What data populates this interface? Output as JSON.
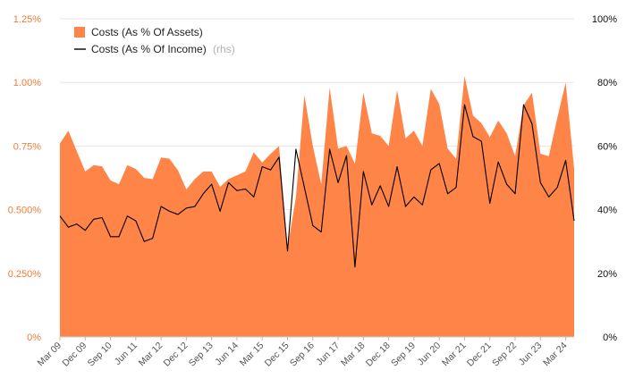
{
  "chart_data": {
    "type": "area",
    "x_ticks": [
      "Mar 09",
      "Dec 09",
      "Sep 10",
      "Jun 11",
      "Mar 12",
      "Dec 12",
      "Sep 13",
      "Jun 14",
      "Mar 15",
      "Dec 15",
      "Sep 16",
      "Jun 17",
      "Mar 18",
      "Dec 18",
      "Sep 19",
      "Jun 20",
      "Mar 21",
      "Dec 21",
      "Sep 22",
      "Jun 23",
      "Mar 24"
    ],
    "left_axis": {
      "ticks": [
        "0%",
        "0.250%",
        "0.500%",
        "0.75%",
        "1.00%",
        "1.25%"
      ],
      "tick_values": [
        0,
        0.25,
        0.5,
        0.75,
        1.0,
        1.25
      ],
      "range": [
        0,
        1.25
      ],
      "color": "#f47a33"
    },
    "right_axis": {
      "ticks": [
        "0%",
        "20%",
        "40%",
        "60%",
        "80%",
        "100%"
      ],
      "tick_values": [
        0,
        20,
        40,
        60,
        80,
        100
      ],
      "range": [
        0,
        100
      ],
      "color": "#111111"
    },
    "legend": {
      "placement": "top-left",
      "rhs_suffix": "(rhs)"
    },
    "series": [
      {
        "name": "Costs (As % Of Assets)",
        "type": "area",
        "axis": "left",
        "color": "#ff8447",
        "values": [
          0.76,
          0.81,
          0.73,
          0.65,
          0.675,
          0.67,
          0.615,
          0.6,
          0.675,
          0.66,
          0.625,
          0.62,
          0.705,
          0.7,
          0.655,
          0.58,
          0.62,
          0.65,
          0.65,
          0.59,
          0.62,
          0.635,
          0.65,
          0.725,
          0.685,
          0.72,
          0.75,
          0.35,
          0.55,
          0.95,
          0.75,
          0.6,
          0.98,
          0.74,
          0.75,
          0.68,
          0.96,
          0.8,
          0.79,
          0.75,
          0.97,
          0.78,
          0.81,
          0.75,
          0.975,
          0.915,
          0.74,
          0.7,
          1.025,
          0.87,
          0.84,
          0.785,
          0.85,
          0.8,
          0.71,
          0.91,
          0.96,
          0.72,
          0.71,
          0.86,
          1.0,
          0.66
        ]
      },
      {
        "name": "Costs (As % Of Income)",
        "type": "line",
        "axis": "right",
        "color": "#000000",
        "values": [
          38,
          34.5,
          35.5,
          33.5,
          37,
          37.5,
          31.5,
          31.5,
          38,
          36.5,
          30,
          31,
          41,
          39.5,
          38.5,
          40.5,
          41,
          45,
          48,
          39.5,
          48.5,
          46,
          46.5,
          44,
          53.5,
          52.5,
          56.5,
          27,
          59,
          47,
          35,
          33,
          59,
          48.5,
          57,
          22,
          52,
          41.5,
          47.5,
          41,
          53.5,
          41,
          44,
          41.5,
          52.5,
          54.5,
          45,
          47,
          73,
          63,
          61.5,
          42,
          55,
          48,
          45,
          73,
          67,
          48.5,
          44,
          47,
          55.5,
          36.5
        ]
      }
    ]
  }
}
